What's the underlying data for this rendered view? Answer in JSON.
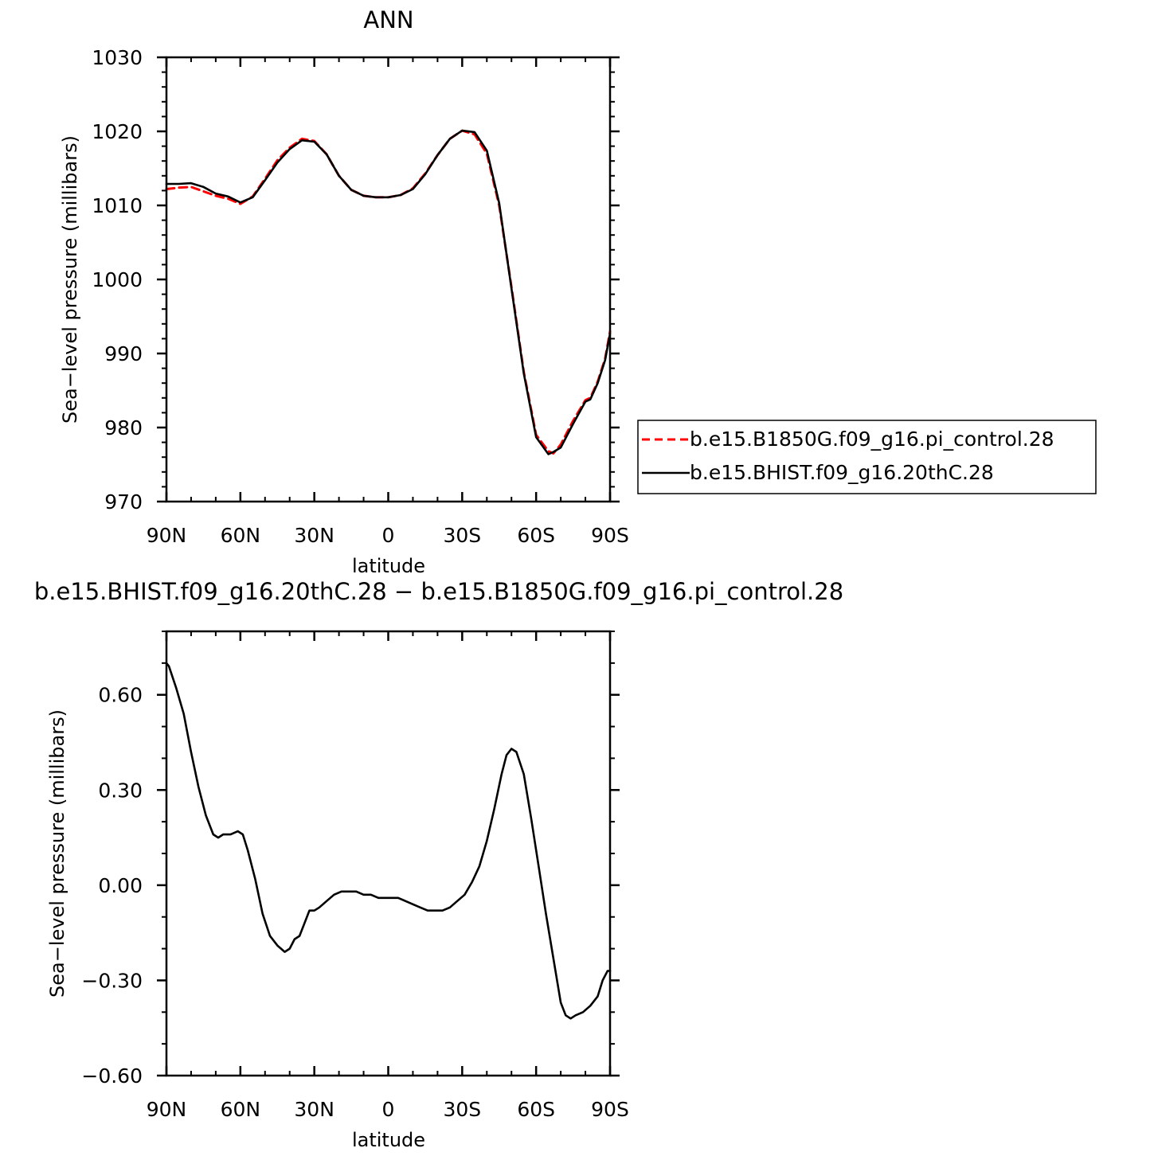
{
  "chart_data": [
    {
      "type": "line",
      "title": "ANN",
      "xlabel": "latitude",
      "ylabel": "Sea−level pressure (millibars)",
      "xlim": [
        90,
        -90
      ],
      "ylim": [
        970,
        1030
      ],
      "x_ticks": [
        90,
        60,
        30,
        0,
        -30,
        -60,
        -90
      ],
      "x_tick_labels": [
        "90N",
        "60N",
        "30N",
        "0",
        "30S",
        "60S",
        "90S"
      ],
      "y_ticks": [
        970,
        980,
        990,
        1000,
        1010,
        1020,
        1030
      ],
      "y_tick_labels": [
        "970",
        "980",
        "990",
        "1000",
        "1010",
        "1020",
        "1030"
      ],
      "legend_position": "right",
      "series": [
        {
          "name": "b.e15.B1850G.f09_g16.pi_control.28",
          "color": "#ff0000",
          "dash": "dashed",
          "x": [
            90,
            85,
            80,
            75,
            70,
            65,
            60,
            55,
            50,
            45,
            40,
            35,
            30,
            25,
            20,
            15,
            10,
            5,
            0,
            -5,
            -10,
            -15,
            -20,
            -25,
            -30,
            -35,
            -40,
            -45,
            -50,
            -55,
            -60,
            -65,
            -67,
            -70,
            -75,
            -80,
            -82,
            -85,
            -88,
            -90
          ],
          "y": [
            1012.2,
            1012.4,
            1012.5,
            1011.9,
            1011.3,
            1010.9,
            1010.2,
            1011.2,
            1013.6,
            1016.1,
            1017.8,
            1019.0,
            1018.7,
            1016.9,
            1014.0,
            1012.1,
            1011.3,
            1011.1,
            1011.1,
            1011.4,
            1012.3,
            1014.3,
            1016.8,
            1019.0,
            1020.1,
            1019.6,
            1017.0,
            1010.0,
            999.0,
            987.5,
            979.0,
            976.8,
            976.5,
            977.7,
            980.9,
            983.7,
            984.0,
            986.2,
            989.3,
            993.0
          ]
        },
        {
          "name": "b.e15.BHIST.f09_g16.20thC.28",
          "color": "#000000",
          "dash": "solid",
          "x": [
            90,
            85,
            80,
            75,
            70,
            65,
            60,
            55,
            50,
            45,
            40,
            35,
            30,
            25,
            20,
            15,
            10,
            5,
            0,
            -5,
            -10,
            -15,
            -20,
            -25,
            -30,
            -35,
            -40,
            -45,
            -50,
            -55,
            -60,
            -65,
            -67,
            -70,
            -75,
            -80,
            -82,
            -85,
            -88,
            -90
          ],
          "y": [
            1012.9,
            1012.9,
            1013.0,
            1012.5,
            1011.6,
            1011.2,
            1010.4,
            1011.1,
            1013.4,
            1015.8,
            1017.6,
            1018.8,
            1018.6,
            1016.9,
            1014.0,
            1012.1,
            1011.3,
            1011.1,
            1011.1,
            1011.4,
            1012.2,
            1014.2,
            1016.8,
            1019.0,
            1020.1,
            1019.9,
            1017.4,
            1010.3,
            998.8,
            987.3,
            978.7,
            976.4,
            976.7,
            977.3,
            980.5,
            983.5,
            983.8,
            986.0,
            989.1,
            992.7
          ]
        }
      ]
    },
    {
      "type": "line",
      "title": "b.e15.BHIST.f09_g16.20thC.28 − b.e15.B1850G.f09_g16.pi_control.28",
      "xlabel": "latitude",
      "ylabel": "Sea−level pressure (millibars)",
      "xlim": [
        90,
        -90
      ],
      "ylim": [
        -0.6,
        0.8
      ],
      "x_ticks": [
        90,
        60,
        30,
        0,
        -30,
        -60,
        -90
      ],
      "x_tick_labels": [
        "90N",
        "60N",
        "30N",
        "0",
        "30S",
        "60S",
        "90S"
      ],
      "y_ticks": [
        -0.6,
        -0.3,
        0.0,
        0.3,
        0.6
      ],
      "y_tick_labels": [
        "−0.60",
        "−0.30",
        "0.00",
        "0.30",
        "0.60"
      ],
      "series": [
        {
          "color": "#000000",
          "dash": "solid",
          "x": [
            90,
            89,
            86,
            83,
            80,
            77,
            74,
            71,
            69,
            67,
            64,
            61,
            59,
            57,
            54,
            51,
            48,
            45,
            42,
            40,
            38,
            36,
            34,
            32,
            30,
            28,
            25,
            22,
            19,
            16,
            13,
            10,
            7,
            4,
            0,
            -4,
            -7,
            -10,
            -13,
            -16,
            -19,
            -22,
            -25,
            -28,
            -31,
            -34,
            -37,
            -40,
            -43,
            -46,
            -48,
            -50,
            -52,
            -55,
            -58,
            -61,
            -64,
            -67,
            -70,
            -72,
            -74,
            -76,
            -79,
            -82,
            -85,
            -87,
            -89,
            -90
          ],
          "y": [
            0.7,
            0.69,
            0.62,
            0.54,
            0.42,
            0.31,
            0.22,
            0.16,
            0.15,
            0.16,
            0.16,
            0.17,
            0.16,
            0.11,
            0.02,
            -0.09,
            -0.16,
            -0.19,
            -0.21,
            -0.2,
            -0.17,
            -0.16,
            -0.12,
            -0.08,
            -0.08,
            -0.07,
            -0.05,
            -0.03,
            -0.02,
            -0.02,
            -0.02,
            -0.03,
            -0.03,
            -0.04,
            -0.04,
            -0.04,
            -0.05,
            -0.06,
            -0.07,
            -0.08,
            -0.08,
            -0.08,
            -0.07,
            -0.05,
            -0.03,
            0.01,
            0.06,
            0.14,
            0.24,
            0.35,
            0.41,
            0.43,
            0.42,
            0.35,
            0.21,
            0.06,
            -0.09,
            -0.23,
            -0.37,
            -0.41,
            -0.42,
            -0.41,
            -0.4,
            -0.38,
            -0.35,
            -0.3,
            -0.27,
            -0.27
          ]
        }
      ]
    }
  ]
}
